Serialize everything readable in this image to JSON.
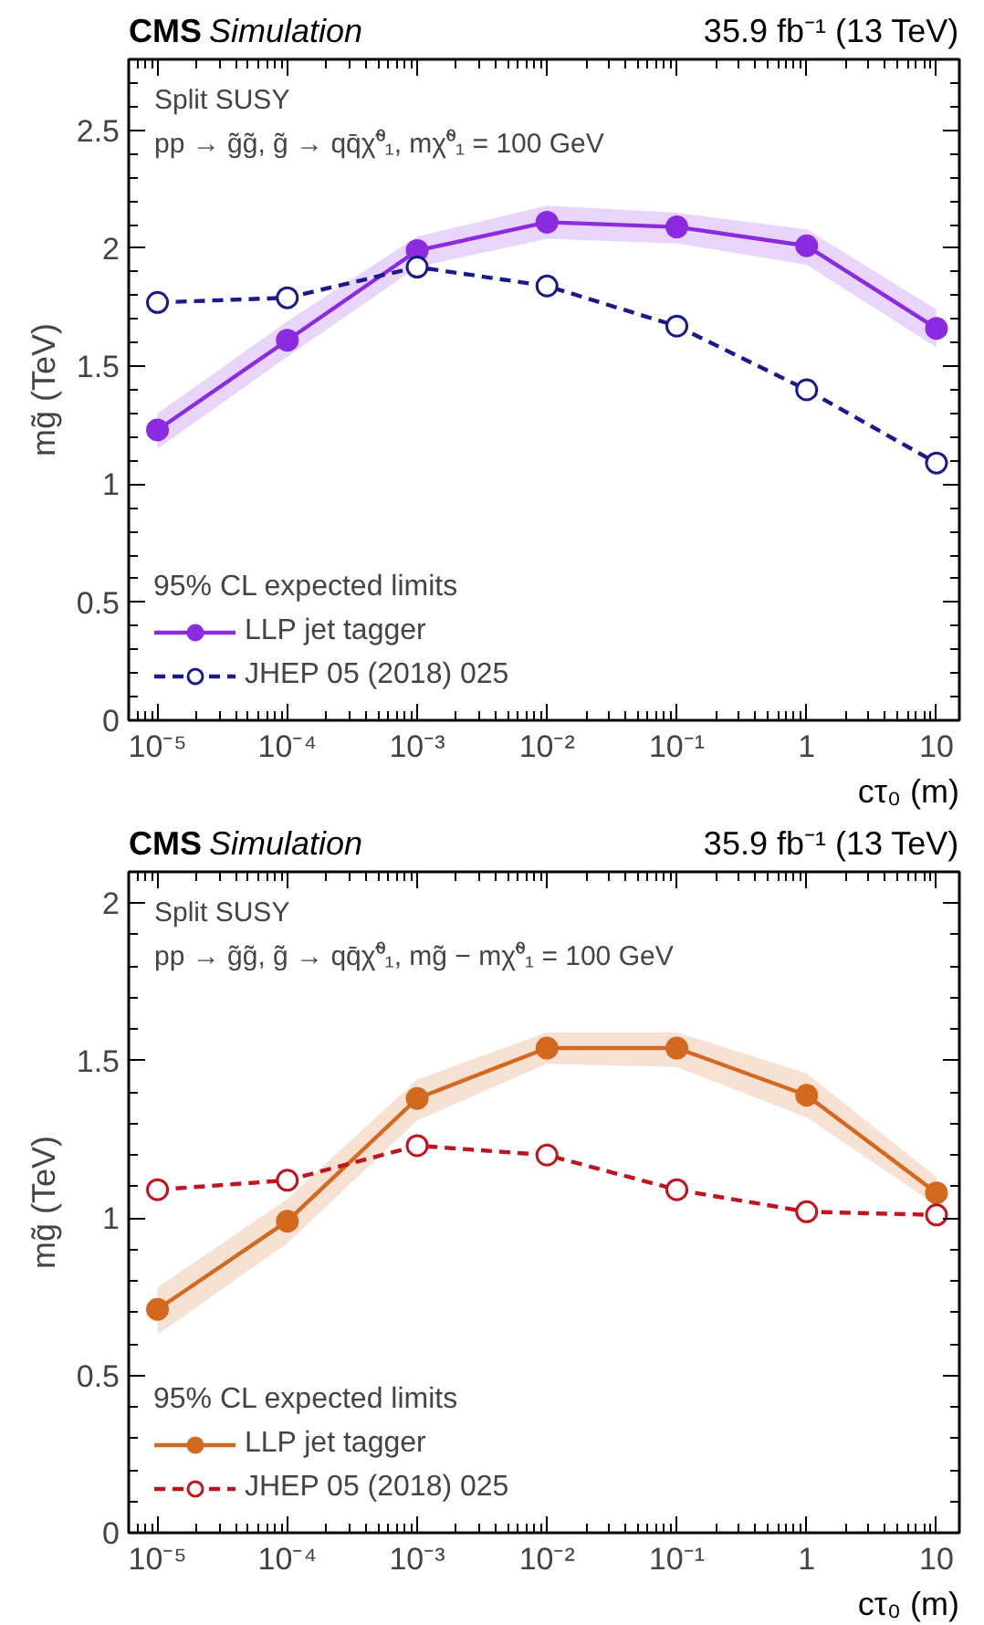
{
  "chart_data": [
    {
      "type": "line",
      "title": "CMS Simulation",
      "annotations": [
        "35.9 fb⁻¹ (13 TeV)",
        "Split SUSY",
        "pp → g̃g̃, g̃ → qq̄χ̃⁰₁, mχ̃⁰₁ = 100 GeV"
      ],
      "xlabel": "cτ₀ (m)",
      "ylabel": "mg̃ (TeV)",
      "legend_title": "95% CL expected limits",
      "legend": "bottom left",
      "log": "x",
      "grid": false,
      "marker": "circle",
      "x": [
        1e-05,
        0.0001,
        0.001,
        0.01,
        0.1,
        1,
        10
      ],
      "xlim": [
        6e-06,
        15
      ],
      "xticks": [
        {
          "value": 1e-05,
          "label": "10⁻⁵"
        },
        {
          "value": 0.0001,
          "label": "10⁻⁴"
        },
        {
          "value": 0.001,
          "label": "10⁻³"
        },
        {
          "value": 0.01,
          "label": "10⁻²"
        },
        {
          "value": 0.1,
          "label": "10⁻¹"
        },
        1,
        10
      ],
      "ylim": [
        0,
        2.8
      ],
      "yticks": [
        0,
        0.5,
        1,
        {
          "value": 1.5,
          "label": "1.5"
        },
        2,
        {
          "value": 2.5,
          "label": "2.5"
        }
      ],
      "series": [
        {
          "name": "LLP jet tagger",
          "color": "#8a2be2",
          "line_style": "solid",
          "values": [
            1.23,
            1.61,
            1.99,
            2.11,
            2.09,
            2.01,
            1.66
          ],
          "lower": [
            1.15,
            1.54,
            1.92,
            2.04,
            2.02,
            1.93,
            1.58
          ],
          "upper": [
            1.3,
            1.69,
            2.05,
            2.18,
            2.15,
            2.08,
            1.74
          ]
        },
        {
          "name": "JHEP 05 (2018) 025",
          "color": "#1a1a8c",
          "line_style": "dashed",
          "values": [
            1.77,
            1.79,
            1.92,
            1.84,
            1.67,
            1.4,
            1.09
          ]
        }
      ]
    },
    {
      "type": "line",
      "title": "CMS Simulation",
      "annotations": [
        "35.9 fb⁻¹ (13 TeV)",
        "Split SUSY",
        "pp → g̃g̃, g̃ → qq̄χ̃⁰₁, mg̃ − mχ̃⁰₁ = 100 GeV"
      ],
      "xlabel": "cτ₀ (m)",
      "ylabel": "mg̃ (TeV)",
      "legend_title": "95% CL expected limits",
      "legend": "bottom left",
      "log": "x",
      "grid": false,
      "marker": "circle",
      "x": [
        1e-05,
        0.0001,
        0.001,
        0.01,
        0.1,
        1,
        10
      ],
      "xlim": [
        6e-06,
        15
      ],
      "xticks": [
        {
          "value": 1e-05,
          "label": "10⁻⁵"
        },
        {
          "value": 0.0001,
          "label": "10⁻⁴"
        },
        {
          "value": 0.001,
          "label": "10⁻³"
        },
        {
          "value": 0.01,
          "label": "10⁻²"
        },
        {
          "value": 0.1,
          "label": "10⁻¹"
        },
        1,
        10
      ],
      "ylim": [
        0,
        2.1
      ],
      "yticks": [
        0,
        {
          "value": 0.5,
          "label": "0.5"
        },
        1,
        {
          "value": 1.5,
          "label": "1.5"
        },
        2
      ],
      "series": [
        {
          "name": "LLP jet tagger",
          "color": "#d2691e",
          "line_style": "solid",
          "values": [
            0.71,
            0.99,
            1.38,
            1.54,
            1.54,
            1.39,
            1.08
          ],
          "lower": [
            0.63,
            0.92,
            1.31,
            1.49,
            1.48,
            1.32,
            1.04
          ],
          "upper": [
            0.78,
            1.06,
            1.44,
            1.59,
            1.59,
            1.46,
            1.13
          ]
        },
        {
          "name": "JHEP 05 (2018) 025",
          "color": "#c0141e",
          "line_style": "dashed",
          "values": [
            1.09,
            1.12,
            1.23,
            1.2,
            1.09,
            1.02,
            1.01
          ]
        }
      ]
    }
  ]
}
